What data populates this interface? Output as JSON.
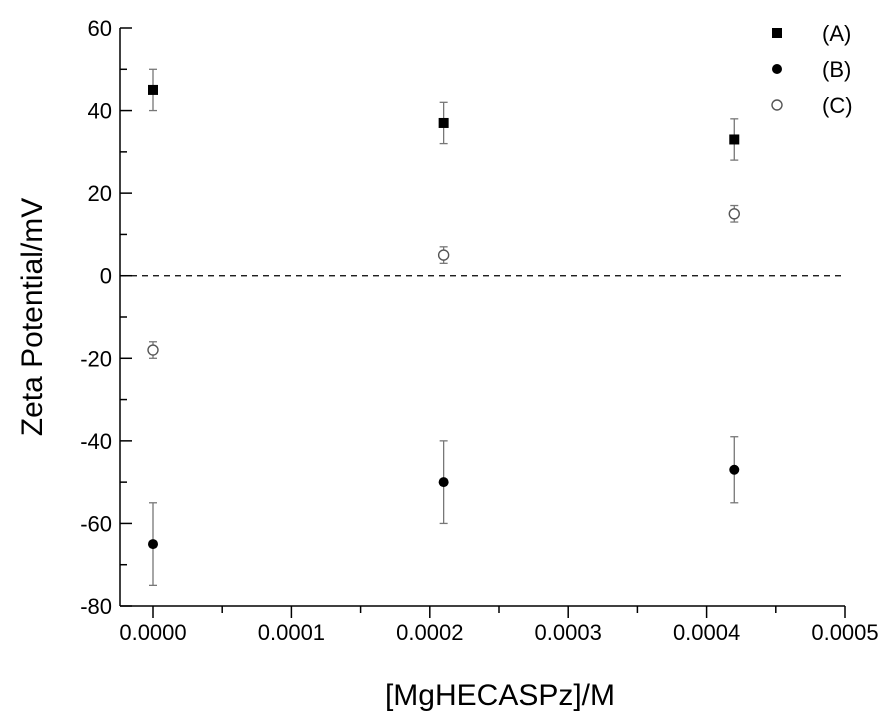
{
  "chart_data": {
    "type": "scatter",
    "xlabel": "[MgHECASPz]/M",
    "ylabel": "Zeta Potential/mV",
    "xlim": [
      0,
      0.0005
    ],
    "ylim": [
      -80,
      60
    ],
    "xticks": [
      "0.0000",
      "0.0001",
      "0.0002",
      "0.0003",
      "0.0004",
      "0.0005"
    ],
    "yticks": [
      "-80",
      "-60",
      "-40",
      "-20",
      "0",
      "20",
      "40",
      "60"
    ],
    "reference_line": {
      "y": 0,
      "style": "dashed"
    },
    "legend_position": "top-right",
    "series": [
      {
        "name": "(A)",
        "marker": "filled-square",
        "x": [
          0,
          0.00021,
          0.00042
        ],
        "y": [
          45,
          37,
          33
        ],
        "error": [
          5,
          5,
          5
        ]
      },
      {
        "name": "(B)",
        "marker": "filled-circle",
        "x": [
          0,
          0.00021,
          0.00042
        ],
        "y": [
          -65,
          -50,
          -47
        ],
        "error": [
          10,
          10,
          8
        ]
      },
      {
        "name": "(C)",
        "marker": "open-circle",
        "x": [
          0,
          0.00021,
          0.00042
        ],
        "y": [
          -18,
          5,
          15
        ],
        "error": [
          2,
          2,
          2
        ]
      }
    ],
    "colors": {
      "marker": "#000000",
      "open_marker": "#555555",
      "error_bar": "#777777",
      "axis": "#000000"
    }
  }
}
